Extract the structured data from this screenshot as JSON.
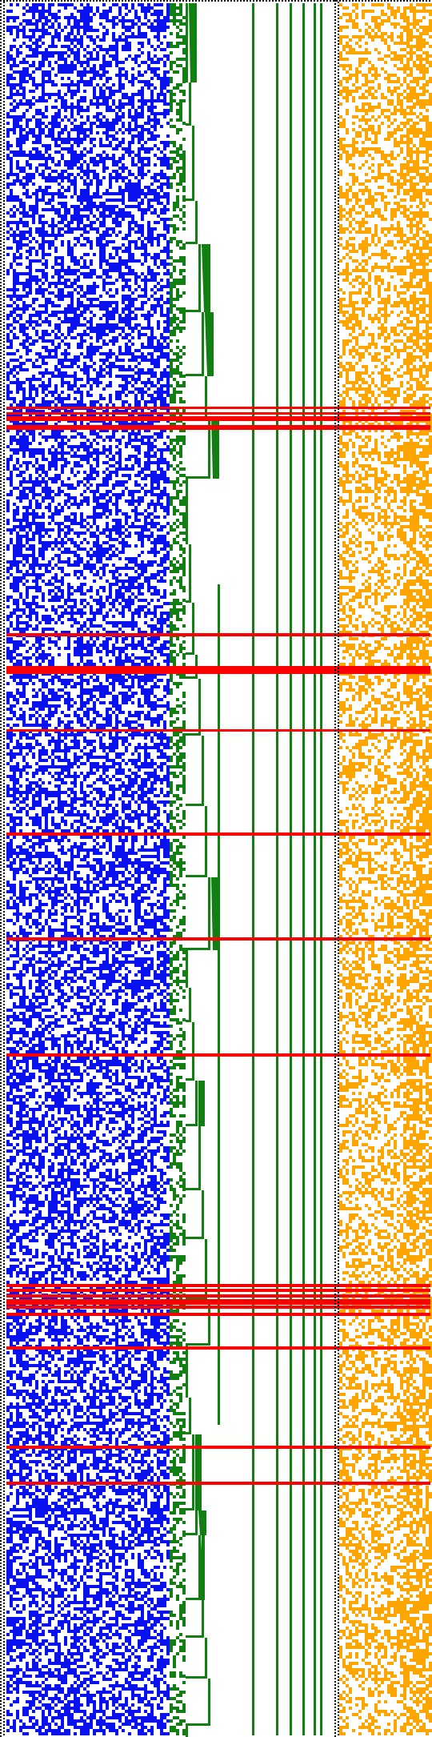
{
  "colors": {
    "background": "#ffffff",
    "blue_cells": "#0a12f0",
    "green_steps": "#117f11",
    "orange_cells": "#ffa500",
    "red_lines": "#ff0000",
    "dotted_border": "#000000"
  },
  "green_vertical_line_count": 6,
  "red_horizontal_line_count": 22
}
